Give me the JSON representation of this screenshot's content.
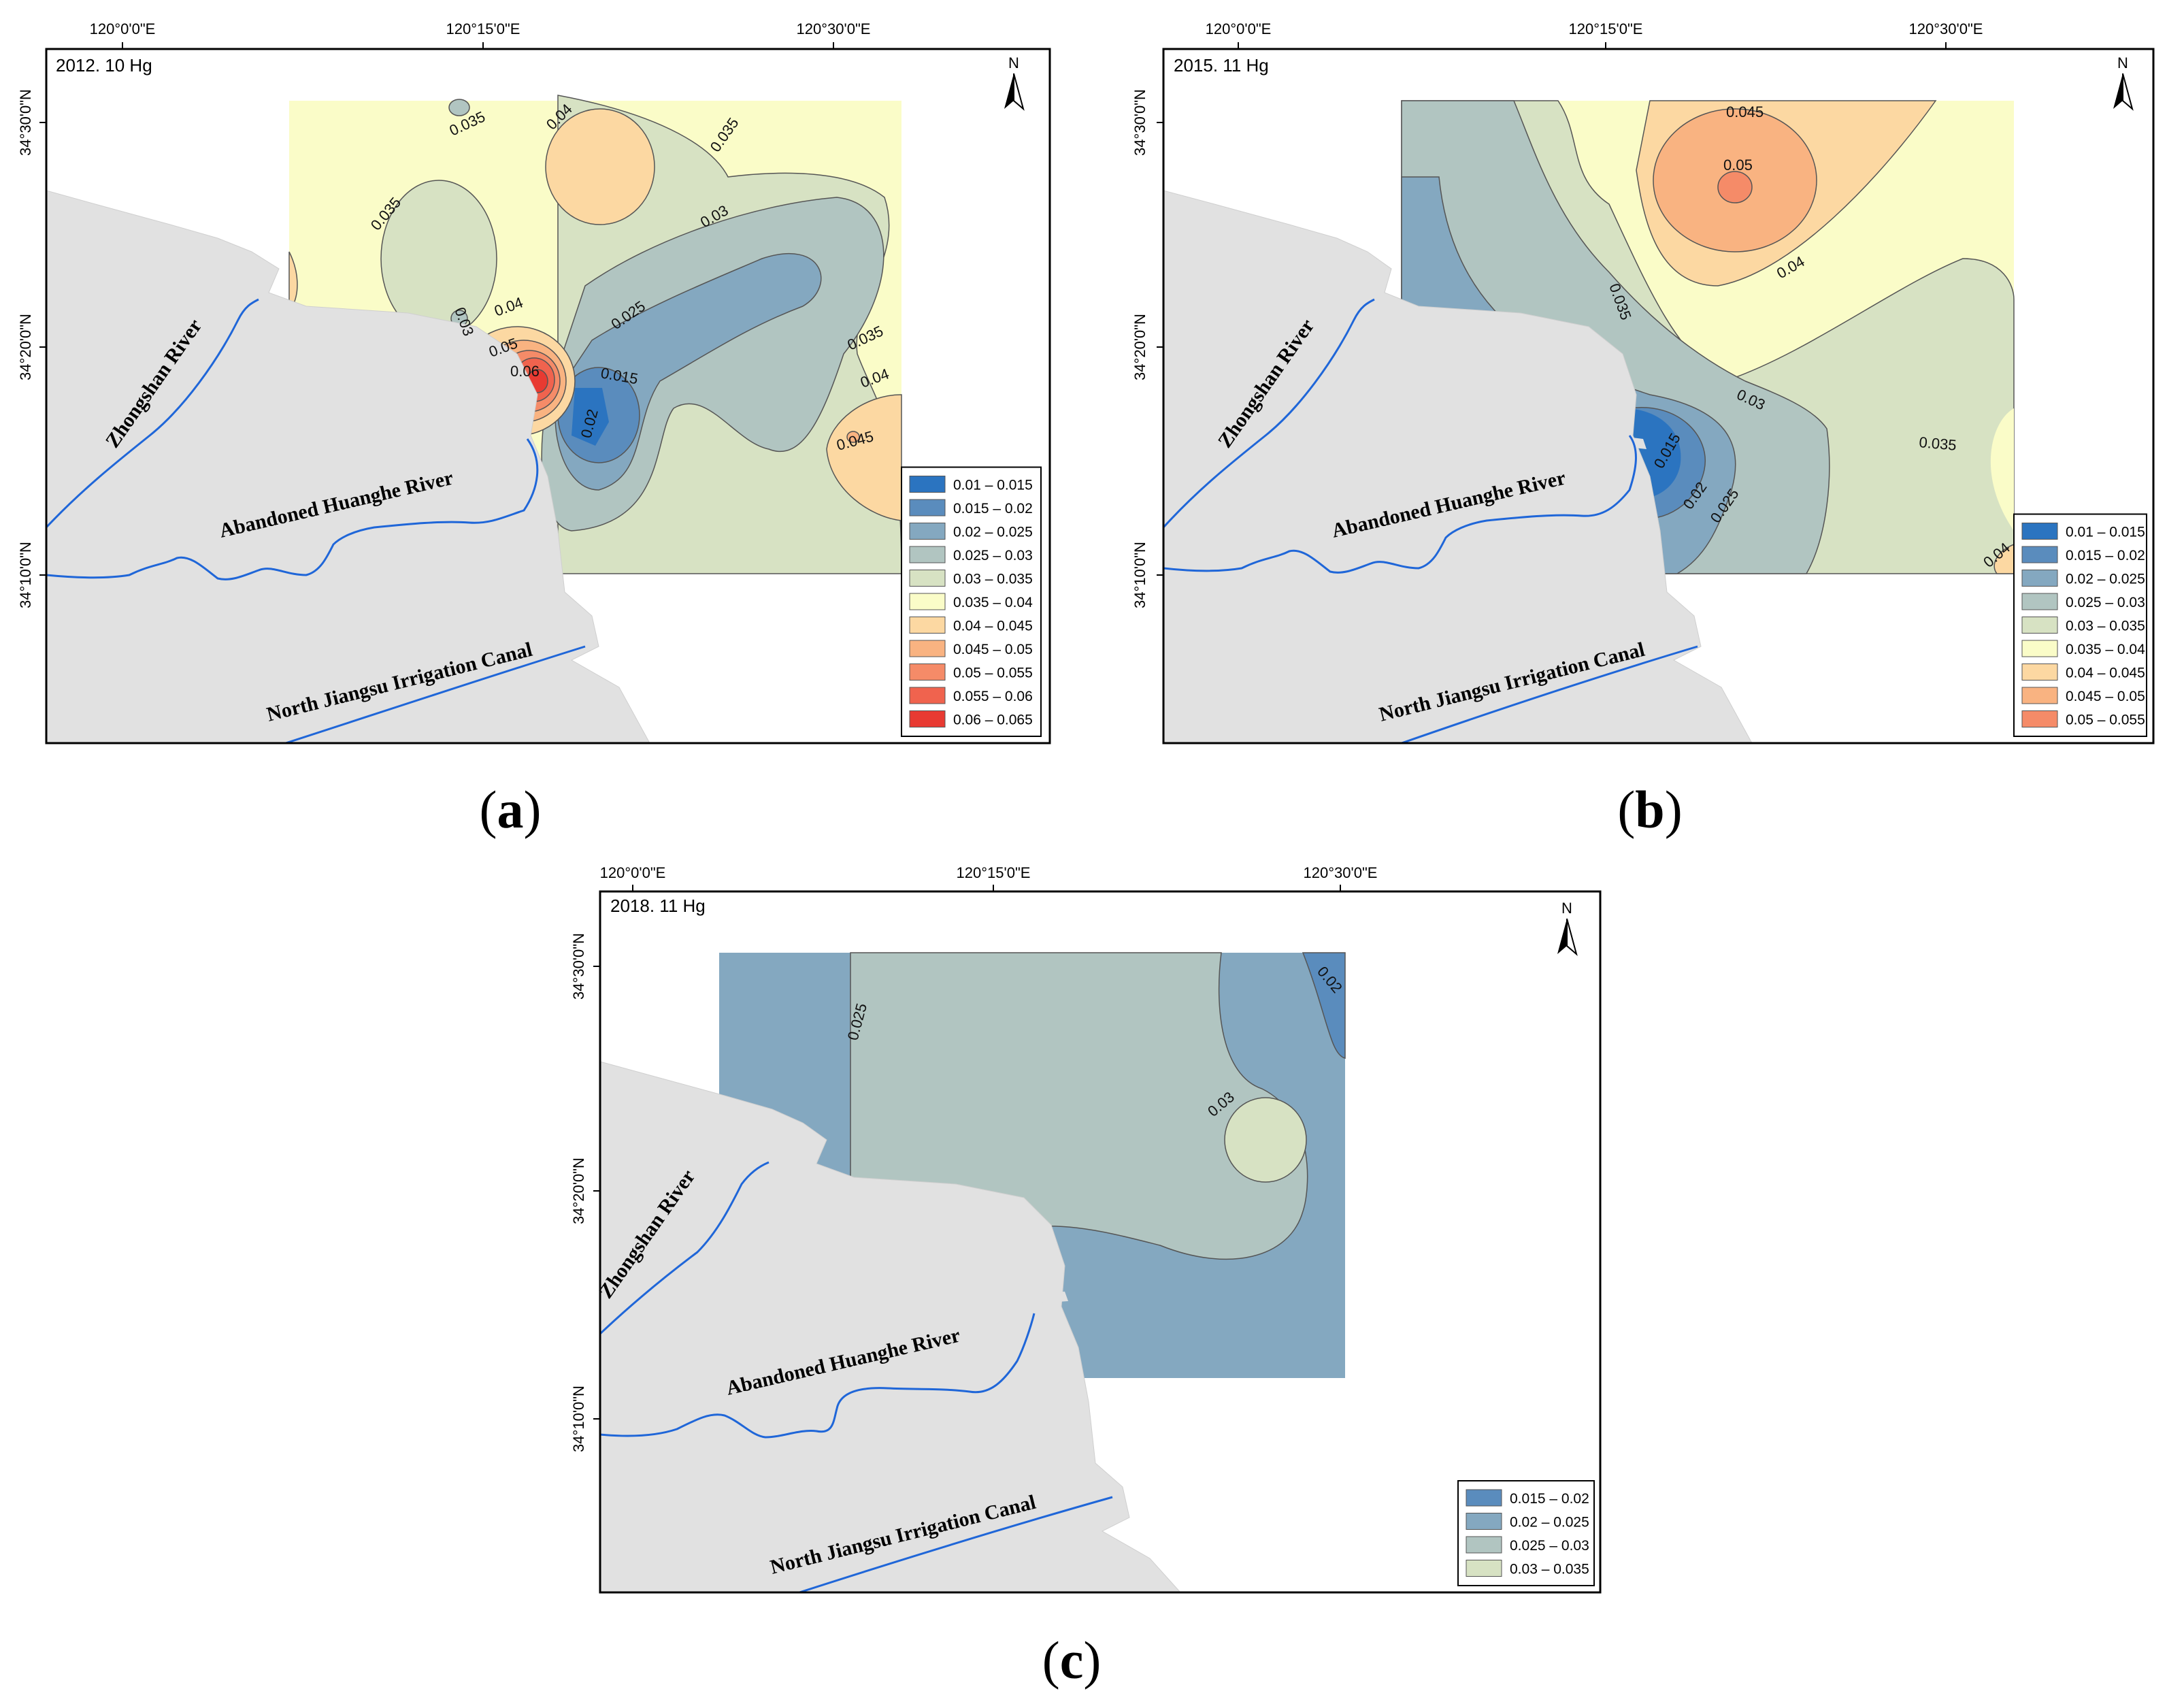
{
  "panels": [
    {
      "id": "a",
      "title": "2012. 10  Hg",
      "caption_open": "(",
      "caption_letter": "a",
      "caption_close": ")",
      "lon_labels": [
        "120°0'0\"E",
        "120°15'0\"E",
        "120°30'0\"E"
      ],
      "lat_labels": [
        "34°30'0\"N",
        "34°20'0\"N",
        "34°10'0\"N"
      ],
      "north": "N",
      "rivers": [
        "Zhongshan River",
        "Abandoned Huanghe River",
        "North Jiangsu Irrigation Canal"
      ],
      "contour_labels": [
        "0.035",
        "0.04",
        "0.035",
        "0.035",
        "0.03",
        "0.03",
        "0.04",
        "0.025",
        "0.05",
        "0.06",
        "0.015",
        "0.02",
        "0.035",
        "0.04",
        "0.045"
      ],
      "legend": [
        {
          "range": "0.01 – 0.015",
          "color": "#2b74c0"
        },
        {
          "range": "0.015 – 0.02",
          "color": "#5a8cbd"
        },
        {
          "range": "0.02 – 0.025",
          "color": "#84a8c0"
        },
        {
          "range": "0.025 – 0.03",
          "color": "#b1c5c1"
        },
        {
          "range": "0.03 – 0.035",
          "color": "#d7e2c3"
        },
        {
          "range": "0.035 – 0.04",
          "color": "#fafcc8"
        },
        {
          "range": "0.04 – 0.045",
          "color": "#fcd8a2"
        },
        {
          "range": "0.045 – 0.05",
          "color": "#f9b381"
        },
        {
          "range": "0.05 – 0.055",
          "color": "#f58b68"
        },
        {
          "range": "0.055 – 0.06",
          "color": "#f0634e"
        },
        {
          "range": "0.06 – 0.065",
          "color": "#e83a32"
        }
      ]
    },
    {
      "id": "b",
      "title": "2015. 11  Hg",
      "caption_open": "(",
      "caption_letter": "b",
      "caption_close": ")",
      "lon_labels": [
        "120°0'0\"E",
        "120°15'0\"E",
        "120°30'0\"E"
      ],
      "lat_labels": [
        "34°30'0\"N",
        "34°20'0\"N",
        "34°10'0\"N"
      ],
      "north": "N",
      "rivers": [
        "Zhongshan River",
        "Abandoned Huanghe River",
        "North Jiangsu Irrigation Canal"
      ],
      "contour_labels": [
        "0.045",
        "0.05",
        "0.04",
        "0.035",
        "0.03",
        "0.035",
        "0.015",
        "0.02",
        "0.025",
        "0.04"
      ],
      "legend": [
        {
          "range": "0.01 – 0.015",
          "color": "#2b74c0"
        },
        {
          "range": "0.015 – 0.02",
          "color": "#5a8cbd"
        },
        {
          "range": "0.02 – 0.025",
          "color": "#84a8c0"
        },
        {
          "range": "0.025 – 0.03",
          "color": "#b1c5c1"
        },
        {
          "range": "0.03 – 0.035",
          "color": "#d7e2c3"
        },
        {
          "range": "0.035 – 0.04",
          "color": "#fafcc8"
        },
        {
          "range": "0.04 – 0.045",
          "color": "#fcd8a2"
        },
        {
          "range": "0.045 – 0.05",
          "color": "#f9b381"
        },
        {
          "range": "0.05 – 0.055",
          "color": "#f58b68"
        }
      ]
    },
    {
      "id": "c",
      "title": "2018. 11  Hg",
      "caption_open": "(",
      "caption_letter": "c",
      "caption_close": ")",
      "lon_labels": [
        "120°0'0\"E",
        "120°15'0\"E",
        "120°30'0\"E"
      ],
      "lat_labels": [
        "34°30'0\"N",
        "34°20'0\"N",
        "34°10'0\"N"
      ],
      "north": "N",
      "rivers": [
        "Zhongshan River",
        "Abandoned Huanghe River",
        "North Jiangsu Irrigation Canal"
      ],
      "contour_labels": [
        "0.025",
        "0.02",
        "0.03"
      ],
      "legend": [
        {
          "range": "0.015 – 0.02",
          "color": "#5a8cbd"
        },
        {
          "range": "0.02 – 0.025",
          "color": "#84a8c0"
        },
        {
          "range": "0.025 – 0.03",
          "color": "#b1c5c1"
        },
        {
          "range": "0.03 – 0.035",
          "color": "#d7e2c3"
        }
      ]
    }
  ]
}
